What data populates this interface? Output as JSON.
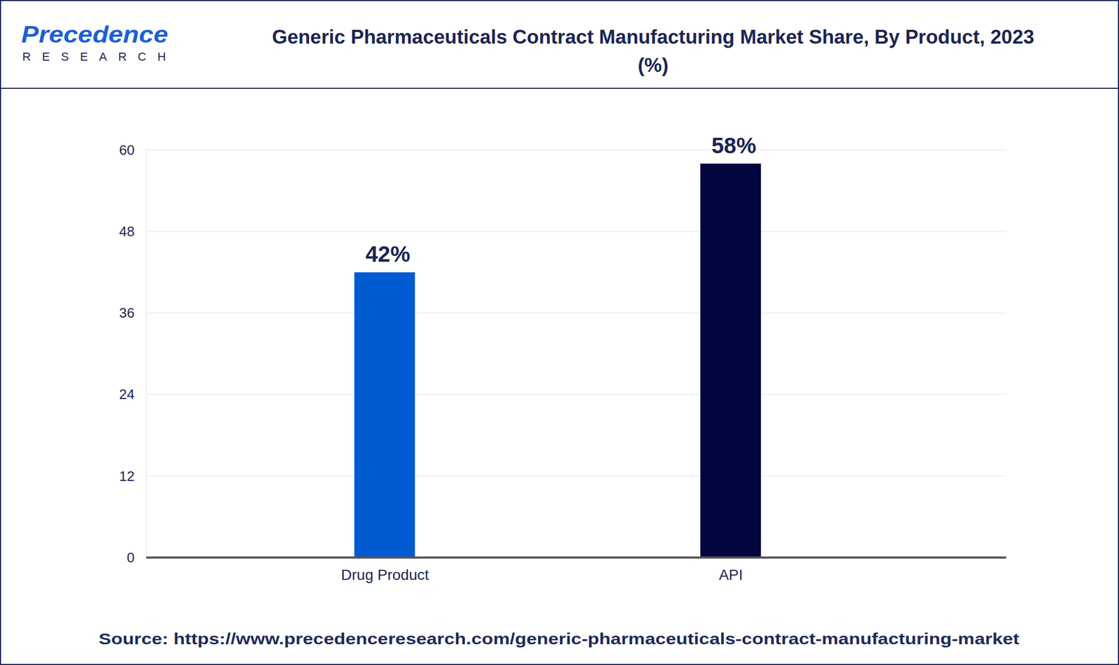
{
  "logo": {
    "name": "Precedence",
    "tagline": "RESEARCH"
  },
  "chart_data": {
    "type": "bar",
    "title": "Generic Pharmaceuticals Contract Manufacturing Market Share, By Product, 2023 (%)",
    "source": "Source: https://www.precedenceresearch.com/generic-pharmaceuticals-contract-manufacturing-market",
    "categories": [
      "Drug Product",
      "API"
    ],
    "values": [
      42,
      58
    ],
    "value_labels": [
      "42%",
      "58%"
    ],
    "colors": [
      "#005bd3",
      "#03053f"
    ],
    "ylim": [
      0,
      60
    ],
    "yticks": [
      0,
      12,
      24,
      36,
      48,
      60
    ],
    "grid": true,
    "data_labels": true
  }
}
